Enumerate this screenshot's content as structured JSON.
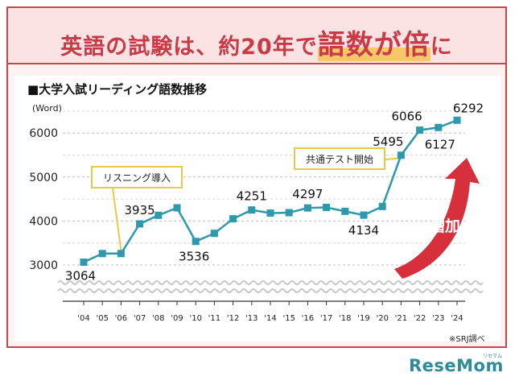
{
  "headline": {
    "pre": "英語の試験は、約20年で",
    "highlight": "語数が倍",
    "post": "に"
  },
  "chart_data": {
    "type": "line",
    "title": "■大学入試リーディング語数推移",
    "ylabel": "(Word)",
    "xlabel": "",
    "ylim": [
      3000,
      6500
    ],
    "yticks": [
      3000,
      4000,
      5000,
      6000
    ],
    "grid": true,
    "categories": [
      "'04",
      "'05",
      "'06",
      "'07",
      "'08",
      "'09",
      "'10",
      "'11",
      "'12",
      "'13",
      "'14",
      "'15",
      "'16",
      "'17",
      "'18",
      "'19",
      "'20",
      "'21",
      "'22",
      "'23",
      "'24"
    ],
    "series": [
      {
        "values": [
          3064,
          3260,
          3260,
          3935,
          4130,
          4300,
          3536,
          3720,
          4050,
          4251,
          4180,
          4190,
          4297,
          4310,
          4220,
          4134,
          4330,
          5495,
          6066,
          6127,
          6292
        ],
        "color": "#2e98ad"
      }
    ],
    "data_labels": [
      {
        "index": 0,
        "text": "3064"
      },
      {
        "index": 3,
        "text": "3935"
      },
      {
        "index": 6,
        "text": "3536"
      },
      {
        "index": 9,
        "text": "4251"
      },
      {
        "index": 12,
        "text": "4297"
      },
      {
        "index": 15,
        "text": "4134"
      },
      {
        "index": 17,
        "text": "5495"
      },
      {
        "index": 18,
        "text": "6066"
      },
      {
        "index": 19,
        "text": "6127"
      },
      {
        "index": 20,
        "text": "6292"
      }
    ],
    "annotations": [
      {
        "text": "リスニング導入",
        "index": 2
      },
      {
        "text": "共通テスト開始",
        "index": 17
      }
    ],
    "trend_arrow": {
      "text": "増加",
      "color": "#d7303d"
    }
  },
  "note": "※SRJ調べ",
  "logo": {
    "text": "ReseMom",
    "sub": "リセマム"
  },
  "colors": {
    "accent": "#c9474c",
    "line": "#2e98ad",
    "callout_border": "#e8c94a"
  }
}
